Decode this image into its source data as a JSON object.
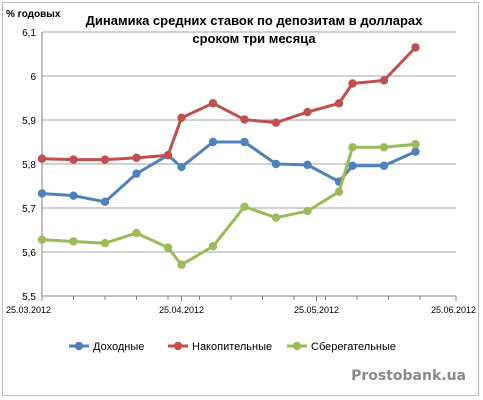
{
  "chart_data": {
    "type": "line",
    "title_lines": [
      "Динамика средних ставок по депозитам в долларах",
      "сроком три месяца"
    ],
    "ylabel": "% годовых",
    "ylim": [
      5.5,
      6.1
    ],
    "yticks": [
      "5,5",
      "5,6",
      "5,7",
      "5,8",
      "5,9",
      "6",
      "6,1"
    ],
    "ytick_values": [
      5.5,
      5.6,
      5.7,
      5.8,
      5.9,
      6.0,
      6.1
    ],
    "x_dates": [
      "2012-03-25",
      "2012-04-01",
      "2012-04-08",
      "2012-04-15",
      "2012-04-22",
      "2012-04-25",
      "2012-05-02",
      "2012-05-09",
      "2012-05-16",
      "2012-05-23",
      "2012-05-30",
      "2012-06-02",
      "2012-06-09",
      "2012-06-16",
      "2012-06-23"
    ],
    "xticks": [
      {
        "label": "25.03.2012",
        "date": "2012-03-25"
      },
      {
        "label": "25.04.2012",
        "date": "2012-04-25"
      },
      {
        "label": "25.05.2012",
        "date": "2012-05-25"
      },
      {
        "label": "25.06.2012",
        "date": "2012-06-25"
      }
    ],
    "grid": true,
    "legend_position": "bottom",
    "series": [
      {
        "name": "Доходные",
        "color": "#4f81bd",
        "values": [
          5.733,
          5.728,
          5.714,
          5.778,
          5.82,
          5.793,
          5.85,
          5.85,
          5.8,
          5.798,
          5.76,
          5.796,
          5.796,
          5.828,
          null
        ]
      },
      {
        "name": "Накопительные",
        "color": "#c0504d",
        "values": [
          5.812,
          5.81,
          5.81,
          5.814,
          5.82,
          5.905,
          5.938,
          5.901,
          5.894,
          5.918,
          5.938,
          5.983,
          5.99,
          6.065,
          null
        ]
      },
      {
        "name": "Сберегательные",
        "color": "#9bbb59",
        "values": [
          5.628,
          5.624,
          5.62,
          5.643,
          5.61,
          5.571,
          5.613,
          5.703,
          5.678,
          5.693,
          5.737,
          5.838,
          5.838,
          5.845,
          null
        ]
      }
    ]
  },
  "watermark": "Prostobank.ua"
}
